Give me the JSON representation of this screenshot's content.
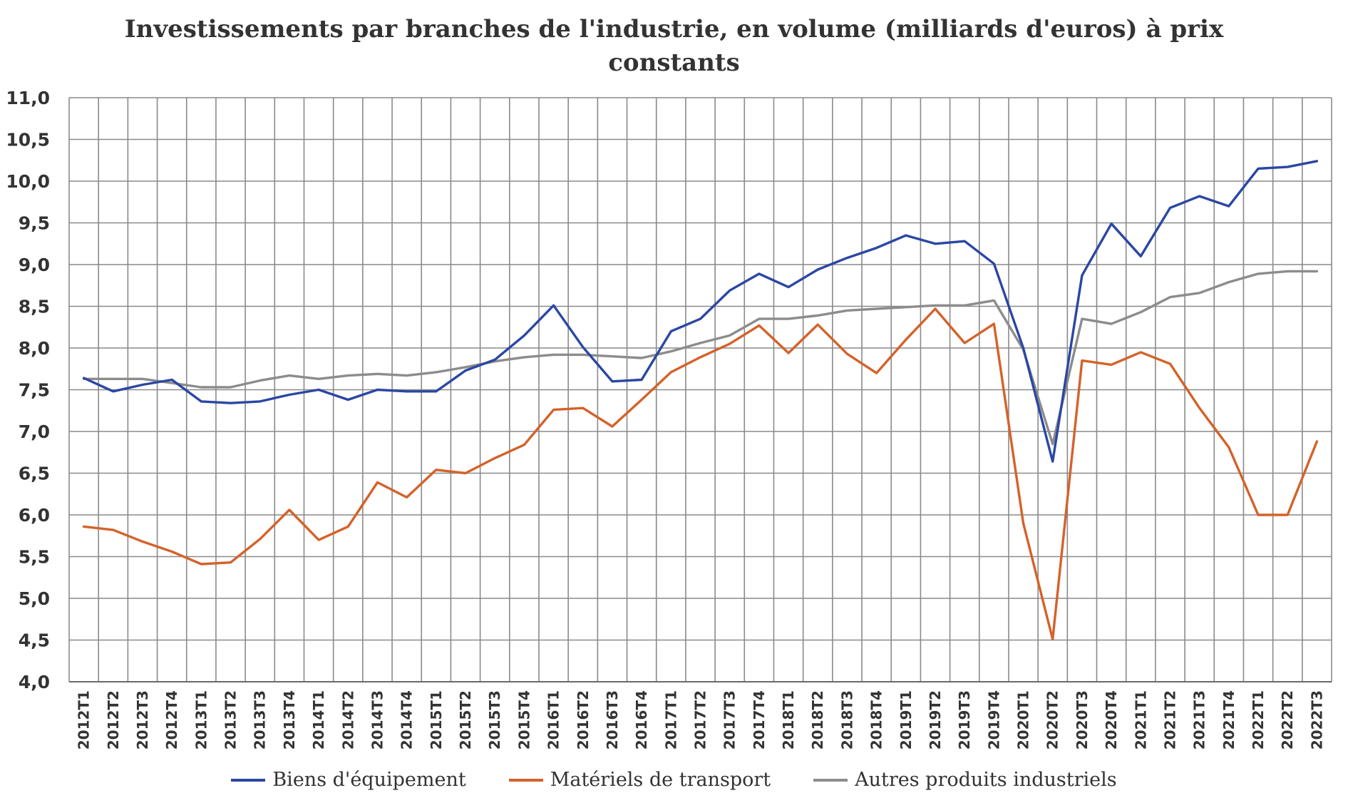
{
  "chart_data": {
    "type": "line",
    "title_line1": "Investissements  par branches de l'industrie, en volume (milliards d'euros) à prix",
    "title_line2": "constants",
    "x": [
      "2012T1",
      "2012T2",
      "2012T3",
      "2012T4",
      "2013T1",
      "2013T2",
      "2013T3",
      "2013T4",
      "2014T1",
      "2014T2",
      "2014T3",
      "2014T4",
      "2015T1",
      "2015T2",
      "2015T3",
      "2015T4",
      "2016T1",
      "2016T2",
      "2016T3",
      "2016T4",
      "2017T1",
      "2017T2",
      "2017T3",
      "2017T4",
      "2018T1",
      "2018T2",
      "2018T3",
      "2018T4",
      "2019T1",
      "2019T2",
      "2019T3",
      "2019T4",
      "2020T1",
      "2020T2",
      "2020T3",
      "2020T4",
      "2021T1",
      "2021T2",
      "2021T3",
      "2021T4",
      "2022T1",
      "2022T2",
      "2022T3"
    ],
    "ylim": [
      4.0,
      11.0
    ],
    "yticks": [
      "4,0",
      "4,5",
      "5,0",
      "5,5",
      "6,0",
      "6,5",
      "7,0",
      "7,5",
      "8,0",
      "8,5",
      "9,0",
      "9,5",
      "10,0",
      "10,5",
      "11,0"
    ],
    "grid": true,
    "legend_position": "bottom",
    "series": [
      {
        "name": "Biens d'équipement",
        "color": "#2a47a3",
        "values": [
          7.64,
          7.48,
          7.56,
          7.62,
          7.36,
          7.34,
          7.36,
          7.44,
          7.5,
          7.38,
          7.5,
          7.48,
          7.48,
          7.73,
          7.86,
          8.15,
          8.51,
          8.01,
          7.6,
          7.62,
          8.2,
          8.35,
          8.69,
          8.89,
          8.73,
          8.94,
          9.08,
          9.2,
          9.35,
          9.25,
          9.28,
          9.01,
          8.0,
          6.64,
          8.87,
          9.49,
          9.1,
          9.68,
          9.82,
          9.7,
          10.15,
          10.17,
          10.24
        ]
      },
      {
        "name": "Matériels de transport",
        "color": "#d4622a",
        "values": [
          5.86,
          5.82,
          5.68,
          5.56,
          5.41,
          5.43,
          5.71,
          6.06,
          5.7,
          5.86,
          6.39,
          6.21,
          6.54,
          6.5,
          6.68,
          6.84,
          7.26,
          7.28,
          7.06,
          7.38,
          7.71,
          7.89,
          8.05,
          8.27,
          7.94,
          8.28,
          7.93,
          7.7,
          8.1,
          8.47,
          8.06,
          8.29,
          5.9,
          4.51,
          7.85,
          7.8,
          7.95,
          7.81,
          7.28,
          6.81,
          6.0,
          6.0,
          6.88
        ]
      },
      {
        "name": "Autres produits industriels",
        "color": "#8c8c8c",
        "values": [
          7.63,
          7.63,
          7.63,
          7.58,
          7.53,
          7.53,
          7.61,
          7.67,
          7.63,
          7.67,
          7.69,
          7.67,
          7.71,
          7.77,
          7.84,
          7.89,
          7.92,
          7.92,
          7.9,
          7.88,
          7.96,
          8.06,
          8.15,
          8.35,
          8.35,
          8.39,
          8.45,
          8.47,
          8.49,
          8.51,
          8.51,
          8.57,
          7.98,
          6.85,
          8.35,
          8.29,
          8.43,
          8.61,
          8.66,
          8.79,
          8.89,
          8.92,
          8.92
        ]
      }
    ]
  }
}
